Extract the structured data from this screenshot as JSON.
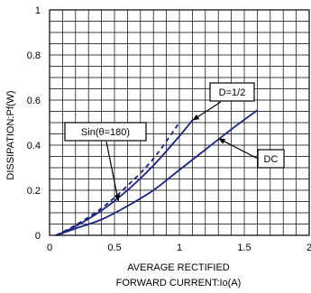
{
  "chart_data": {
    "type": "line",
    "title": "",
    "xlabel_line1": "AVERAGE RECTIFIED",
    "xlabel_line2": "FORWARD CURRENT:Io(A)",
    "ylabel": "DISSIPATION:Pf(W)",
    "xlim": [
      0,
      2
    ],
    "ylim": [
      0,
      1
    ],
    "x_ticks": [
      "0",
      "0.5",
      "1",
      "1.5",
      "2"
    ],
    "y_ticks": [
      "0",
      "0.2",
      "0.4",
      "0.6",
      "0.8",
      "1"
    ],
    "grid": true,
    "series": [
      {
        "name": "DC",
        "style": "solid",
        "color": "#1a237e",
        "x": [
          0.05,
          0.2,
          0.4,
          0.6,
          0.8,
          1.0,
          1.2,
          1.4,
          1.6
        ],
        "y": [
          0,
          0.03,
          0.07,
          0.13,
          0.2,
          0.29,
          0.38,
          0.47,
          0.555
        ]
      },
      {
        "name": "D=1/2",
        "style": "solid",
        "color": "#1a237e",
        "x": [
          0.05,
          0.2,
          0.4,
          0.6,
          0.8,
          1.0,
          1.1
        ],
        "y": [
          0,
          0.04,
          0.11,
          0.2,
          0.31,
          0.44,
          0.51
        ]
      },
      {
        "name": "Sin(θ=180)",
        "style": "dashed",
        "color": "#1a237e",
        "x": [
          0.05,
          0.2,
          0.4,
          0.6,
          0.8,
          1.0
        ],
        "y": [
          0,
          0.045,
          0.12,
          0.22,
          0.34,
          0.5
        ]
      }
    ],
    "annotations": [
      {
        "label": "DC"
      },
      {
        "label": "D=1/2"
      },
      {
        "label": "Sin(θ=180)"
      }
    ]
  }
}
